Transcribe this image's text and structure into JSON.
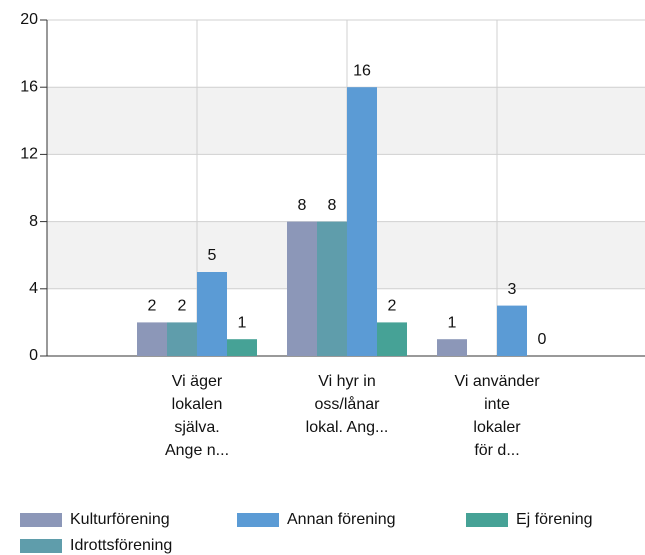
{
  "chart_data": {
    "type": "bar",
    "categories": [
      [
        "Vi äger",
        "lokalen",
        "själva.",
        "Ange n..."
      ],
      [
        "Vi hyr in",
        "oss/lånar",
        "lokal. Ang..."
      ],
      [
        "Vi använder",
        "inte",
        "lokaler",
        "för d..."
      ]
    ],
    "series": [
      {
        "name": "Kulturförening",
        "color": "#8c97b8",
        "values": [
          2,
          8,
          1
        ]
      },
      {
        "name": "Idrottsförening",
        "color": "#5f9dab",
        "values": [
          2,
          8,
          null
        ]
      },
      {
        "name": "Annan förening",
        "color": "#5b9bd5",
        "values": [
          5,
          16,
          3
        ]
      },
      {
        "name": "Ej förening",
        "color": "#46a296",
        "values": [
          1,
          2,
          0
        ]
      }
    ],
    "ylim": [
      0,
      20
    ],
    "yticks": [
      0,
      4,
      8,
      12,
      16,
      20
    ],
    "grid": true
  }
}
